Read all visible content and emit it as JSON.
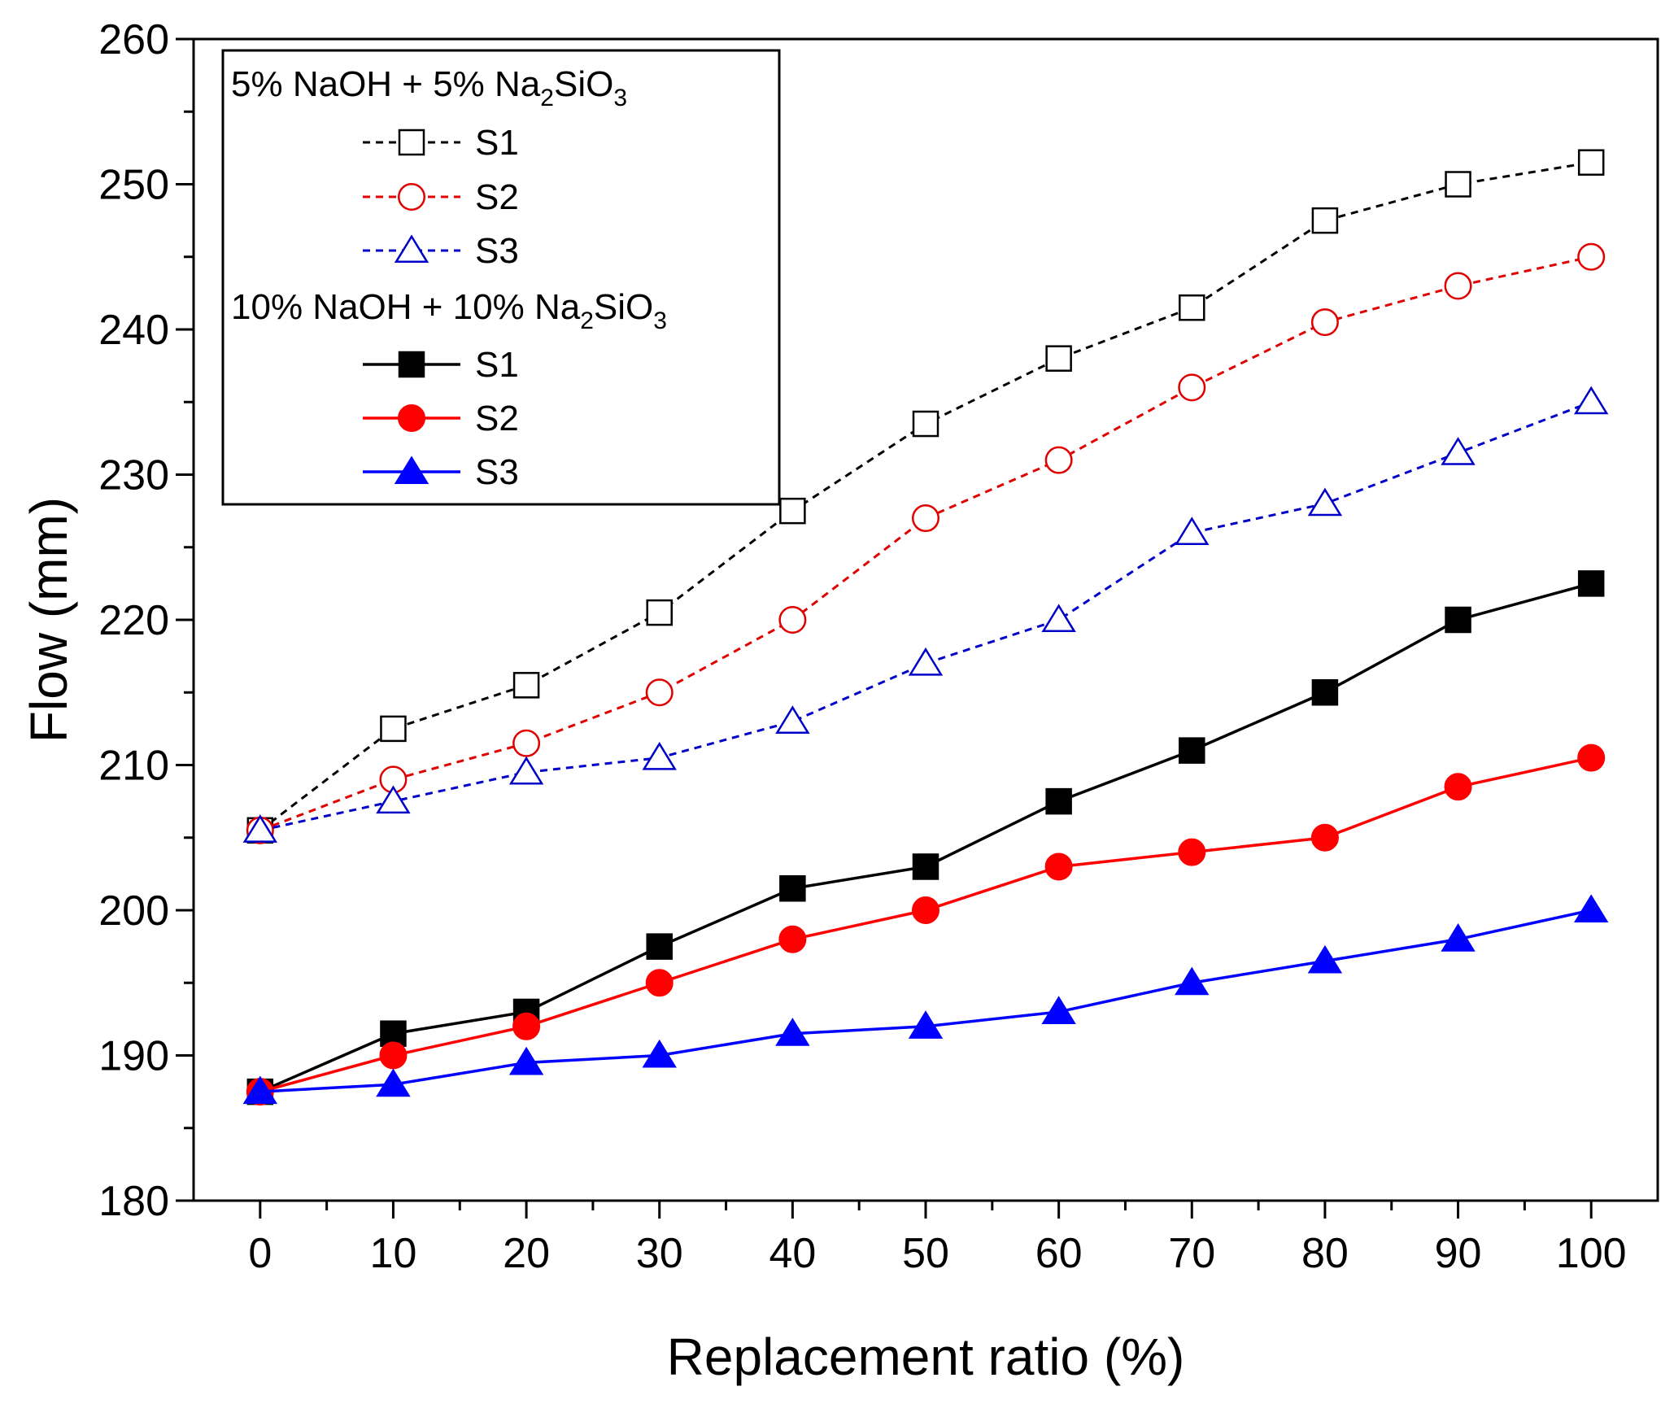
{
  "chart_data": {
    "type": "line",
    "xlabel": "Replacement ratio (%)",
    "ylabel": "Flow (mm)",
    "xlim": [
      -5,
      105
    ],
    "ylim": [
      180,
      260
    ],
    "x_ticks": [
      0,
      10,
      20,
      30,
      40,
      50,
      60,
      70,
      80,
      90,
      100
    ],
    "y_ticks": [
      180,
      190,
      200,
      210,
      220,
      230,
      240,
      250,
      260
    ],
    "x": [
      0,
      10,
      20,
      30,
      40,
      50,
      60,
      70,
      80,
      90,
      100
    ],
    "legend": {
      "placement": "top-left",
      "groups": [
        {
          "title_main": "5% NaOH + 5% Na",
          "title_sub1": "2",
          "title_mid": "SiO",
          "title_sub2": "3"
        },
        {
          "title_main": "10% NaOH + 10% Na",
          "title_sub1": "2",
          "title_mid": "SiO",
          "title_sub2": "3"
        }
      ]
    },
    "series": [
      {
        "name": "S1",
        "group": 0,
        "color": "#000000",
        "dashed": true,
        "marker": "square",
        "filled": false,
        "values": [
          205.5,
          212.5,
          215.5,
          220.5,
          227.5,
          233.5,
          238,
          241.5,
          247.5,
          250,
          251.5
        ]
      },
      {
        "name": "S2",
        "group": 0,
        "color": "#e00000",
        "dashed": true,
        "marker": "circle",
        "filled": false,
        "values": [
          205.5,
          209,
          211.5,
          215,
          220,
          227,
          231,
          236,
          240.5,
          243,
          245
        ]
      },
      {
        "name": "S3",
        "group": 0,
        "color": "#0000c8",
        "dashed": true,
        "marker": "triangle",
        "filled": false,
        "values": [
          205.5,
          207.5,
          209.5,
          210.5,
          213,
          217,
          220,
          226,
          228,
          231.5,
          235
        ]
      },
      {
        "name": "S1",
        "group": 1,
        "color": "#000000",
        "dashed": false,
        "marker": "square",
        "filled": true,
        "values": [
          187.5,
          191.5,
          193,
          197.5,
          201.5,
          203,
          207.5,
          211,
          215,
          220,
          222.5
        ]
      },
      {
        "name": "S2",
        "group": 1,
        "color": "#ff0000",
        "dashed": false,
        "marker": "circle",
        "filled": true,
        "values": [
          187.5,
          190,
          192,
          195,
          198,
          200,
          203,
          204,
          205,
          208.5,
          210.5
        ]
      },
      {
        "name": "S3",
        "group": 1,
        "color": "#0000ff",
        "dashed": false,
        "marker": "triangle",
        "filled": true,
        "values": [
          187.5,
          188,
          189.5,
          190,
          191.5,
          192,
          193,
          195,
          196.5,
          198,
          200
        ]
      }
    ]
  }
}
